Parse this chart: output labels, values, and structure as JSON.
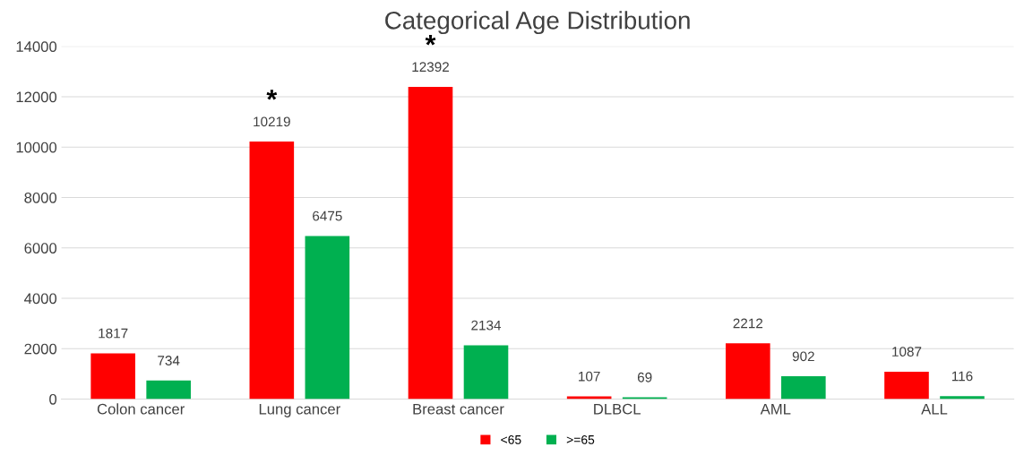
{
  "chart_data": {
    "type": "bar",
    "title": "Categorical Age Distribution",
    "categories": [
      "Colon cancer",
      "Lung cancer",
      "Breast cancer",
      "DLBCL",
      "AML",
      "ALL"
    ],
    "series": [
      {
        "name": "<65",
        "color": "#ff0000",
        "values": [
          1817,
          10219,
          12392,
          107,
          2212,
          1087
        ]
      },
      {
        "name": ">=65",
        "color": "#00b050",
        "values": [
          734,
          6475,
          2134,
          69,
          902,
          116
        ]
      }
    ],
    "ylim": [
      0,
      14000
    ],
    "yticks": [
      0,
      2000,
      4000,
      6000,
      8000,
      10000,
      12000,
      14000
    ],
    "grid": "y",
    "legend": "bottom",
    "data_labels": true,
    "annotations": [
      "*",
      "*"
    ]
  }
}
